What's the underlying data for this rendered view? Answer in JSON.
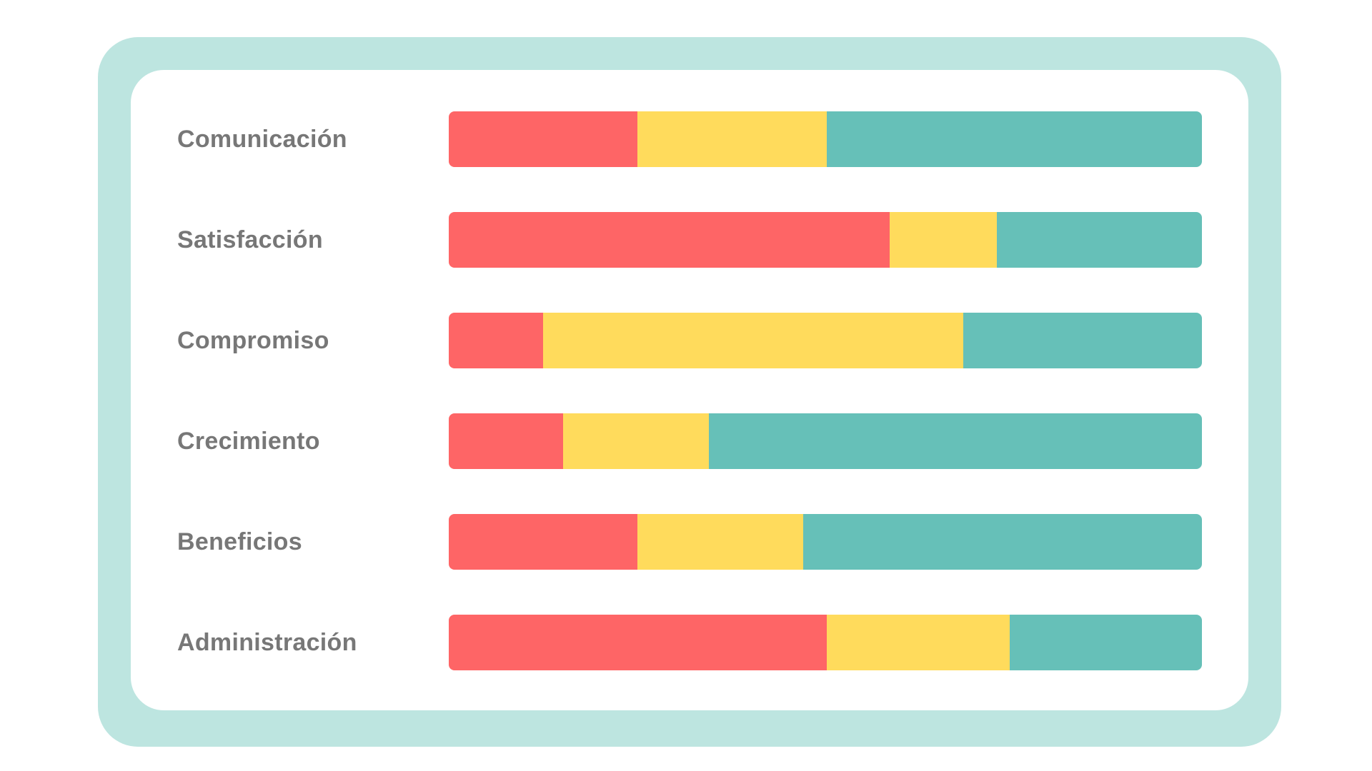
{
  "chart_data": {
    "type": "bar",
    "orientation": "horizontal",
    "stacked": true,
    "categories": [
      "Comunicación",
      "Satisfacción",
      "Compromiso",
      "Crecimiento",
      "Beneficios",
      "Administración"
    ],
    "series": [
      {
        "color": "#fe6566",
        "values": [
          25,
          58.5,
          12.5,
          15.2,
          25,
          50.2
        ]
      },
      {
        "color": "#ffdb5c",
        "values": [
          25.2,
          14.3,
          55.8,
          19.3,
          22.1,
          24.3
        ]
      },
      {
        "color": "#66c0b8",
        "values": [
          49.8,
          27.2,
          31.7,
          65.5,
          52.9,
          25.5
        ]
      }
    ],
    "xlim": [
      0,
      100
    ],
    "grid": false,
    "legend": "none"
  },
  "colors": {
    "frame": "#bde5e0",
    "card": "#ffffff",
    "label": "#777777"
  }
}
